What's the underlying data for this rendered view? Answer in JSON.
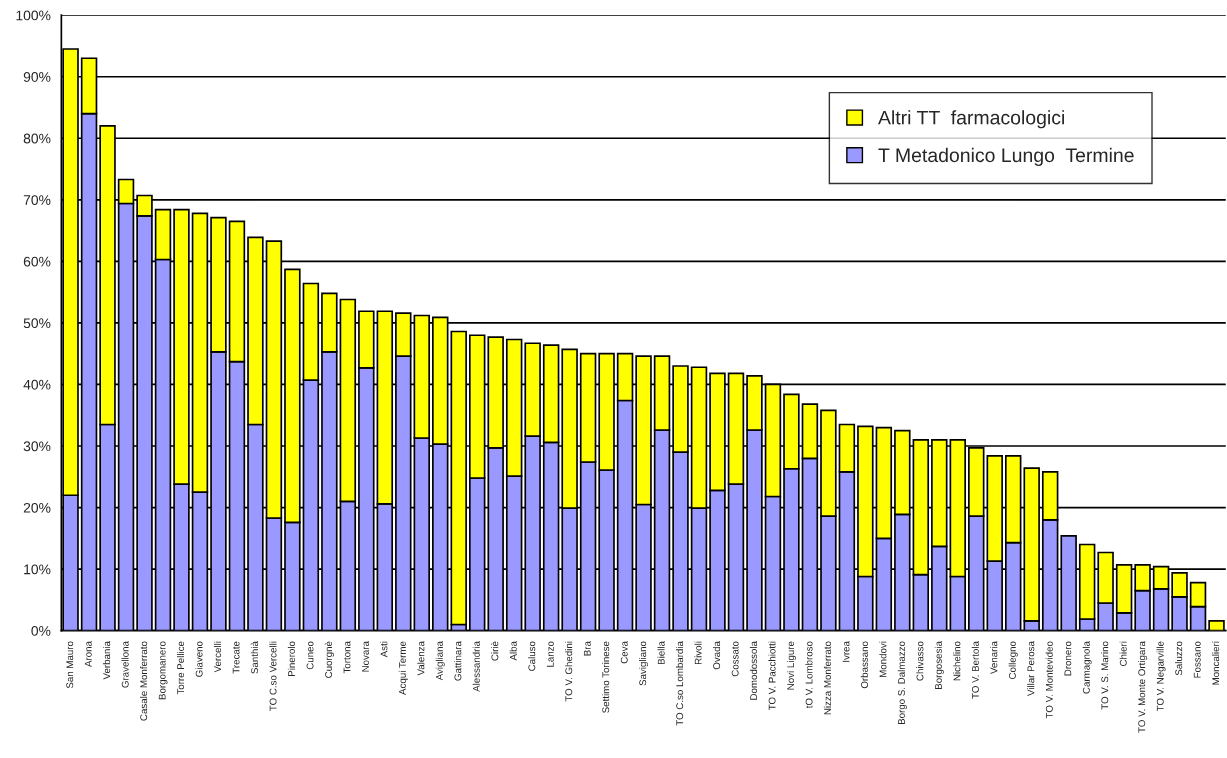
{
  "chart_data": {
    "type": "bar",
    "stacked": true,
    "categories": [
      "San Mauro",
      "Arona",
      "Verbania",
      "Gravellona",
      "Casale Monferrato",
      "Borgomanero",
      "Torre Pellice",
      "Giaveno",
      "Vercelli",
      "Trecate",
      "Santhià",
      "TO C.so Vercelli",
      "Pinerolo",
      "Cuneo",
      "Cuorgnè",
      "Tortona",
      "Novara",
      "Asti",
      "Acqui Terme",
      "Valenza",
      "Avigliana",
      "Gattinara",
      "Alessandria",
      "Ciriè",
      "Alba",
      "Caluso",
      "Lanzo",
      "TO V. Ghedini",
      "Bra",
      "Settimo Torinese",
      "Ceva",
      "Savigliano",
      "Biella",
      "TO C.so Lombardia",
      "Rivoli",
      "Ovada",
      "Cossato",
      "Domodossola",
      "TO V. Pacchiotti",
      "Novi Ligure",
      "tO V. Lombroso",
      "Nizza Monferrato",
      "Ivrea",
      "Orbassano",
      "Mondovi",
      "Borgo S. Dalmazzo",
      "Chivasso",
      "Borgosesia",
      "Nichelino",
      "TO V. Bertola",
      "Venaria",
      "Collegno",
      "Villar Perosa",
      "TO V. Montevideo",
      "Dronero",
      "Carmagnola",
      "TO V. S. Marino",
      "Chieri",
      "TO V. Monte Ortigara",
      "TO V. Negarville",
      "Saluzzo",
      "Fossano",
      "Moncalieri"
    ],
    "series": [
      {
        "name": "T Metadonico Lungo  Termine",
        "color": "#9999ff",
        "values": [
          22,
          84,
          33.5,
          69.4,
          67.4,
          60.3,
          23.8,
          22.5,
          45.3,
          43.7,
          33.5,
          18.3,
          17.6,
          40.7,
          45.3,
          21,
          42.7,
          20.6,
          44.6,
          31.3,
          30.3,
          1,
          24.8,
          29.7,
          25.1,
          31.6,
          30.6,
          19.9,
          27.4,
          26.1,
          37.4,
          20.5,
          32.6,
          29,
          19.9,
          22.8,
          23.8,
          32.6,
          21.8,
          26.3,
          28,
          18.6,
          25.8,
          8.8,
          15,
          18.9,
          9.1,
          13.7,
          8.8,
          18.6,
          11.3,
          14.3,
          1.6,
          18,
          15.4,
          1.9,
          4.5,
          2.9,
          6.5,
          6.8,
          5.5,
          3.9,
          null
        ]
      },
      {
        "name": "Altri TT  farmacologici",
        "color": "#ffff00",
        "values": [
          72.5,
          9,
          48.5,
          3.9,
          3.3,
          8.1,
          44.6,
          45.3,
          21.8,
          22.8,
          30.4,
          45,
          41.1,
          15.7,
          9.5,
          32.8,
          9.2,
          31.3,
          7,
          19.9,
          20.6,
          47.6,
          23.2,
          18,
          22.2,
          15.1,
          15.8,
          25.8,
          17.6,
          18.9,
          7.6,
          24.1,
          12,
          14,
          22.9,
          19,
          18,
          8.8,
          18.2,
          12.1,
          8.8,
          17.2,
          7.7,
          24.4,
          18,
          13.6,
          21.9,
          17.3,
          22.2,
          11.1,
          17.1,
          14.1,
          24.8,
          7.8,
          null,
          12.1,
          8.2,
          7.8,
          4.2,
          3.6,
          3.9,
          3.9,
          1.6
        ]
      }
    ],
    "ylim": [
      0,
      100
    ],
    "yticks": [
      {
        "value": 0,
        "label": "0%"
      },
      {
        "value": 10,
        "label": "10%"
      },
      {
        "value": 20,
        "label": "20%"
      },
      {
        "value": 30,
        "label": "30%"
      },
      {
        "value": 40,
        "label": "40%"
      },
      {
        "value": 50,
        "label": "50%"
      },
      {
        "value": 60,
        "label": "60%"
      },
      {
        "value": 70,
        "label": "70%"
      },
      {
        "value": 80,
        "label": "80%"
      },
      {
        "value": 90,
        "label": "90%"
      },
      {
        "value": 100,
        "label": "100%"
      }
    ],
    "grid": "y",
    "legend": "top right"
  }
}
